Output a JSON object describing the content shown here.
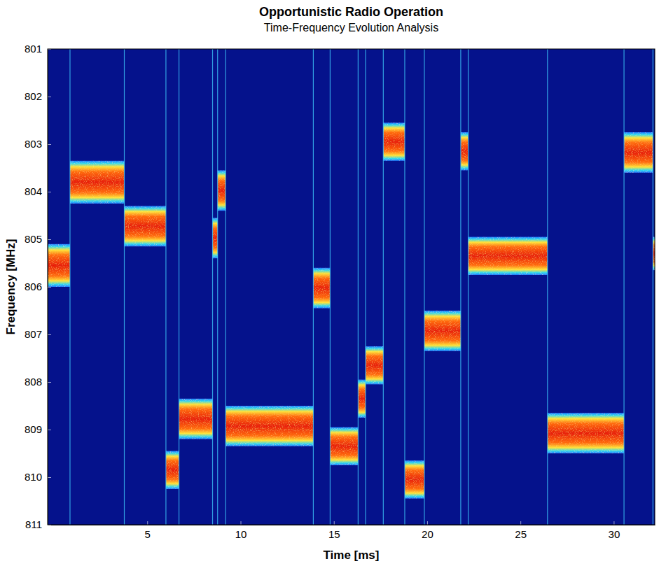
{
  "chart_data": {
    "type": "spectrogram",
    "title": "Opportunistic Radio Operation",
    "subtitle": "Time-Frequency Evolution Analysis",
    "x_label": "Time [ms]",
    "y_label": "Frequency [MHz]",
    "xlim": [
      -0.34,
      32.2
    ],
    "xticks": [
      5,
      10,
      15,
      20,
      25,
      30
    ],
    "ylim": [
      811,
      801
    ],
    "yticks": [
      801,
      802,
      803,
      804,
      805,
      806,
      807,
      808,
      809,
      810,
      811
    ],
    "segments": [
      {
        "start": -0.34,
        "end": 0.86,
        "f_low": 805.1,
        "f_high": 806.0
      },
      {
        "start": 0.86,
        "end": 3.77,
        "f_low": 803.35,
        "f_high": 804.25
      },
      {
        "start": 3.77,
        "end": 6.0,
        "f_low": 804.3,
        "f_high": 805.15
      },
      {
        "start": 6.0,
        "end": 6.7,
        "f_low": 809.45,
        "f_high": 810.25
      },
      {
        "start": 6.7,
        "end": 8.5,
        "f_low": 808.35,
        "f_high": 809.2
      },
      {
        "start": 8.5,
        "end": 8.77,
        "f_low": 804.55,
        "f_high": 805.4
      },
      {
        "start": 8.77,
        "end": 9.2,
        "f_low": 803.55,
        "f_high": 804.4
      },
      {
        "start": 9.2,
        "end": 13.9,
        "f_low": 808.5,
        "f_high": 809.35
      },
      {
        "start": 13.9,
        "end": 14.8,
        "f_low": 805.6,
        "f_high": 806.45
      },
      {
        "start": 14.8,
        "end": 16.3,
        "f_low": 808.95,
        "f_high": 809.75
      },
      {
        "start": 16.3,
        "end": 16.7,
        "f_low": 807.95,
        "f_high": 808.75
      },
      {
        "start": 16.7,
        "end": 17.65,
        "f_low": 807.25,
        "f_high": 808.05
      },
      {
        "start": 17.65,
        "end": 18.8,
        "f_low": 802.55,
        "f_high": 803.35
      },
      {
        "start": 18.8,
        "end": 19.85,
        "f_low": 809.65,
        "f_high": 810.45
      },
      {
        "start": 19.85,
        "end": 21.8,
        "f_low": 806.5,
        "f_high": 807.35
      },
      {
        "start": 21.8,
        "end": 22.2,
        "f_low": 802.75,
        "f_high": 803.55
      },
      {
        "start": 22.2,
        "end": 26.45,
        "f_low": 804.95,
        "f_high": 805.75
      },
      {
        "start": 26.45,
        "end": 30.55,
        "f_low": 808.65,
        "f_high": 809.5
      },
      {
        "start": 30.55,
        "end": 32.1,
        "f_low": 802.75,
        "f_high": 803.6
      },
      {
        "start": 32.1,
        "end": 32.2,
        "f_low": 804.95,
        "f_high": 805.65
      }
    ]
  }
}
